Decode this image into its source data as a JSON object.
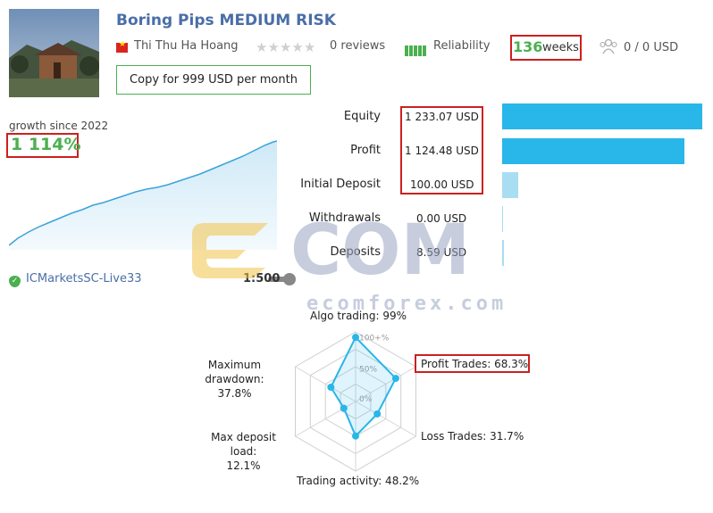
{
  "signal": {
    "title": "Boring Pips MEDIUM RISK",
    "author": "Thi Thu Ha Hoang",
    "reviews": "0 reviews",
    "reliability_label": "Reliability",
    "weeks_number": "136",
    "weeks_label": "weeks",
    "subscribers": "0 / 0 USD",
    "copy_button": "Copy for 999 USD per month",
    "rating_stars": 0
  },
  "growth": {
    "label": "growth since 2022",
    "value": "1 114%"
  },
  "account": {
    "server": "ICMarketsSC-Live33",
    "leverage": "1:500"
  },
  "stats": [
    {
      "label": "Equity",
      "value": "1 233.07 USD",
      "bar_fraction": 1.0
    },
    {
      "label": "Profit",
      "value": "1 124.48 USD",
      "bar_fraction": 0.91
    },
    {
      "label": "Initial Deposit",
      "value": "100.00 USD",
      "bar_fraction": 0.081
    },
    {
      "label": "Withdrawals",
      "value": "0.00 USD",
      "bar_fraction": 0.0
    },
    {
      "label": "Deposits",
      "value": "8.59 USD",
      "bar_fraction": 0.007
    }
  ],
  "radar": {
    "axes": [
      {
        "label": "Algo trading: 99%",
        "value": 99
      },
      {
        "label": "Profit Trades: 68.3%",
        "value": 68.3
      },
      {
        "label": "Loss Trades: 31.7%",
        "value": 31.7
      },
      {
        "label": "Trading activity: 48.2%",
        "value": 48.2
      },
      {
        "label": "Max deposit load:\n12.1%",
        "value": 12.1
      },
      {
        "label": "Maximum drawdown:\n37.8%",
        "value": 37.8
      }
    ],
    "scale_labels": [
      "100+%",
      "50%",
      "0%"
    ]
  },
  "watermark": {
    "brand": "ecomforex.com"
  },
  "colors": {
    "accent_blue": "#29b6e8",
    "growth_green": "#4caf50",
    "highlight_red": "#cc2020",
    "title_blue": "#4a6ea8"
  }
}
